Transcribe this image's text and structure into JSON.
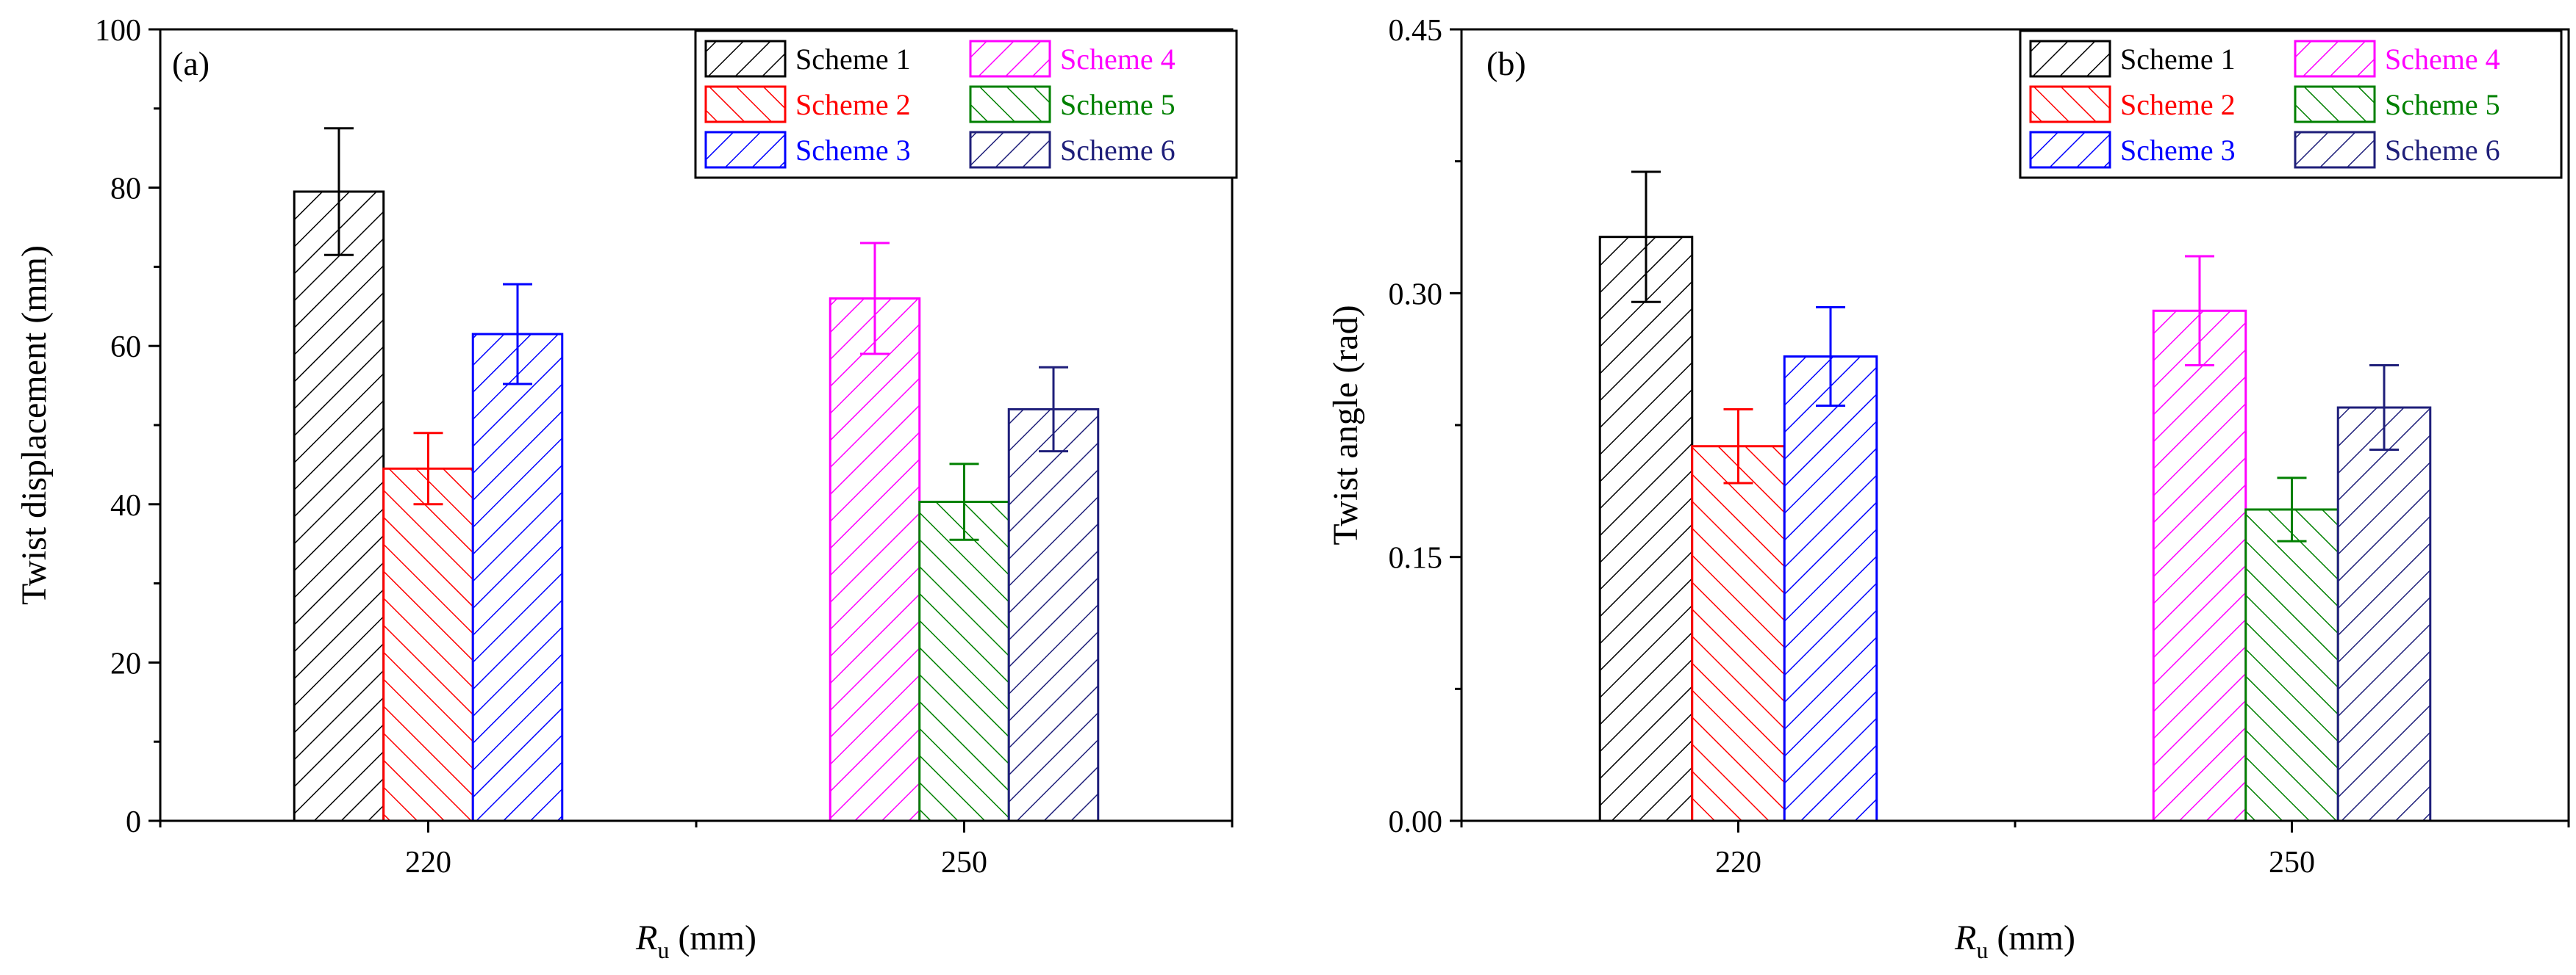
{
  "legend_entries": [
    {
      "name": "Scheme 1",
      "color": "#000000",
      "dir": "f"
    },
    {
      "name": "Scheme 4",
      "color": "#ff00ff",
      "dir": "f"
    },
    {
      "name": "Scheme 2",
      "color": "#ff0000",
      "dir": "b"
    },
    {
      "name": "Scheme 5",
      "color": "#008000",
      "dir": "b"
    },
    {
      "name": "Scheme 3",
      "color": "#0000ff",
      "dir": "f"
    },
    {
      "name": "Scheme 6",
      "color": "#1f1f7a",
      "dir": "f"
    }
  ],
  "chart_data": [
    {
      "type": "bar",
      "panel_label": "(a)",
      "xlabel": {
        "main": "R",
        "sub": "u",
        "rest": " (mm)"
      },
      "ylabel": "Twist displacement (mm)",
      "ylim": [
        0,
        100
      ],
      "yticks": [
        "0",
        "20",
        "40",
        "60",
        "80",
        "100"
      ],
      "tick_values": [
        0,
        20,
        40,
        60,
        80,
        100
      ],
      "xlim": [
        0,
        6
      ],
      "categories": [
        {
          "label": "220",
          "x": 1.5
        },
        {
          "label": "250",
          "x": 4.5
        }
      ],
      "bars": [
        {
          "series": "Scheme 1",
          "x": 1.0,
          "value": 79.5,
          "error": 8.0,
          "color": "#000000",
          "dir": "f"
        },
        {
          "series": "Scheme 2",
          "x": 1.5,
          "value": 44.5,
          "error": 4.5,
          "color": "#ff0000",
          "dir": "b"
        },
        {
          "series": "Scheme 3",
          "x": 2.0,
          "value": 61.5,
          "error": 6.3,
          "color": "#0000ff",
          "dir": "f"
        },
        {
          "series": "Scheme 4",
          "x": 4.0,
          "value": 66.0,
          "error": 7.0,
          "color": "#ff00ff",
          "dir": "f"
        },
        {
          "series": "Scheme 5",
          "x": 4.5,
          "value": 40.3,
          "error": 4.8,
          "color": "#008000",
          "dir": "b"
        },
        {
          "series": "Scheme 6",
          "x": 5.0,
          "value": 52.0,
          "error": 5.3,
          "color": "#1f1f7a",
          "dir": "f"
        }
      ]
    },
    {
      "type": "bar",
      "panel_label": "(b)",
      "xlabel": {
        "main": "R",
        "sub": "u",
        "rest": " (mm)"
      },
      "ylabel": "Twist angle (rad)",
      "ylim": [
        0,
        0.45
      ],
      "yticks": [
        "0.00",
        "0.15",
        "0.30",
        "0.45"
      ],
      "tick_values": [
        0,
        0.15,
        0.3,
        0.45
      ],
      "xlim": [
        0,
        6
      ],
      "categories": [
        {
          "label": "220",
          "x": 1.5
        },
        {
          "label": "250",
          "x": 4.5
        }
      ],
      "bars": [
        {
          "series": "Scheme 1",
          "x": 1.0,
          "value": 0.332,
          "error": 0.037,
          "color": "#000000",
          "dir": "f"
        },
        {
          "series": "Scheme 2",
          "x": 1.5,
          "value": 0.213,
          "error": 0.021,
          "color": "#ff0000",
          "dir": "b"
        },
        {
          "series": "Scheme 3",
          "x": 2.0,
          "value": 0.264,
          "error": 0.028,
          "color": "#0000ff",
          "dir": "f"
        },
        {
          "series": "Scheme 4",
          "x": 4.0,
          "value": 0.29,
          "error": 0.031,
          "color": "#ff00ff",
          "dir": "f"
        },
        {
          "series": "Scheme 5",
          "x": 4.5,
          "value": 0.177,
          "error": 0.018,
          "color": "#008000",
          "dir": "b"
        },
        {
          "series": "Scheme 6",
          "x": 5.0,
          "value": 0.235,
          "error": 0.024,
          "color": "#1f1f7a",
          "dir": "f"
        }
      ]
    }
  ]
}
